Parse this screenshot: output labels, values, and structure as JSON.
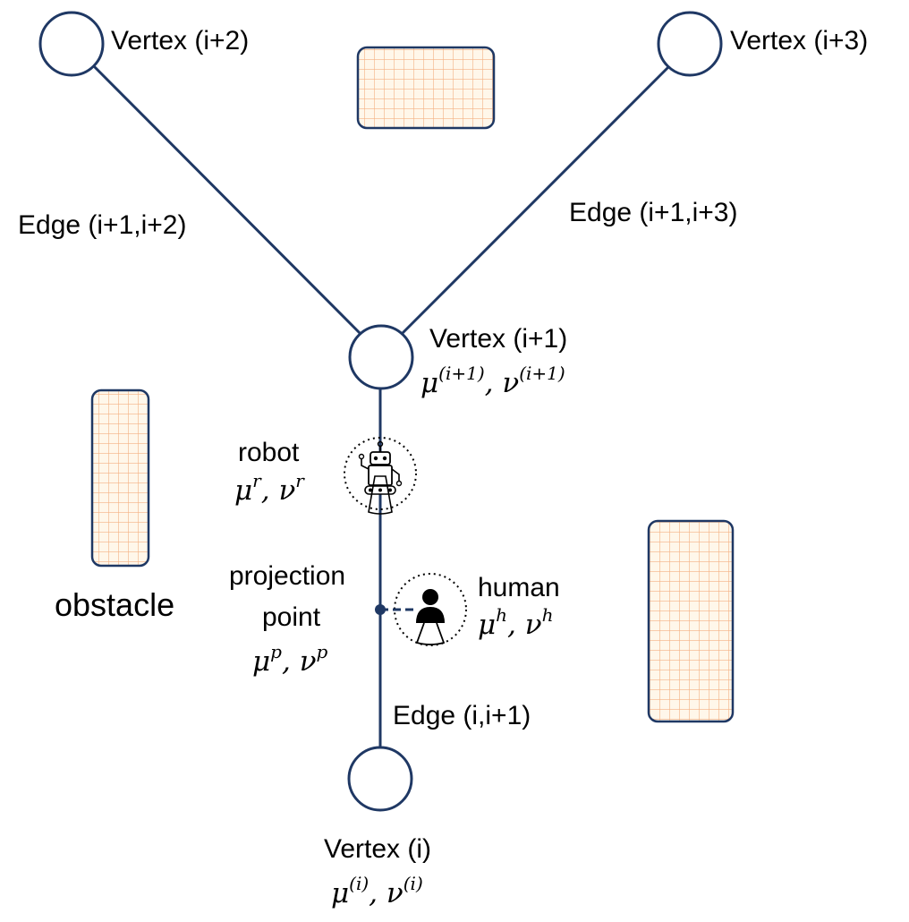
{
  "colors": {
    "edge": "#1f3864",
    "vertex_stroke": "#1f3864",
    "obstacle_fill": "#fff7ea",
    "obstacle_grid": "#f4b183",
    "obstacle_stroke": "#1f3864"
  },
  "vertices": {
    "v_i2": {
      "label": "Vertex (i+2)"
    },
    "v_i3": {
      "label": "Vertex (i+3)"
    },
    "v_i1": {
      "label": "Vertex (i+1)",
      "math_base": "μ",
      "math_sup": "(i+1)",
      "math_sep": ", ",
      "math_base2": "ν",
      "math_sup2": "(i+1)"
    },
    "v_i": {
      "label": "Vertex (i)",
      "math_base": "μ",
      "math_sup": "(i)",
      "math_sep": ", ",
      "math_base2": "ν",
      "math_sup2": "(i)"
    }
  },
  "edges": {
    "e_12": {
      "label": "Edge (i+1,i+2)"
    },
    "e_13": {
      "label": "Edge (i+1,i+3)"
    },
    "e_01": {
      "label": "Edge (i,i+1)"
    }
  },
  "robot": {
    "label": "robot",
    "math_base": "μ",
    "math_sup": "r",
    "math_sep": ", ",
    "math_base2": "ν",
    "math_sup2": "r",
    "icon": "robot-icon"
  },
  "human": {
    "label": "human",
    "math_base": "μ",
    "math_sup": "h",
    "math_sep": ", ",
    "math_base2": "ν",
    "math_sup2": "h",
    "icon": "person-icon"
  },
  "projection": {
    "label_line1": "projection",
    "label_line2": "point",
    "math_base": "μ",
    "math_sup": "p",
    "math_sep": ", ",
    "math_base2": "ν",
    "math_sup2": "p"
  },
  "obstacle": {
    "label": "obstacle"
  }
}
